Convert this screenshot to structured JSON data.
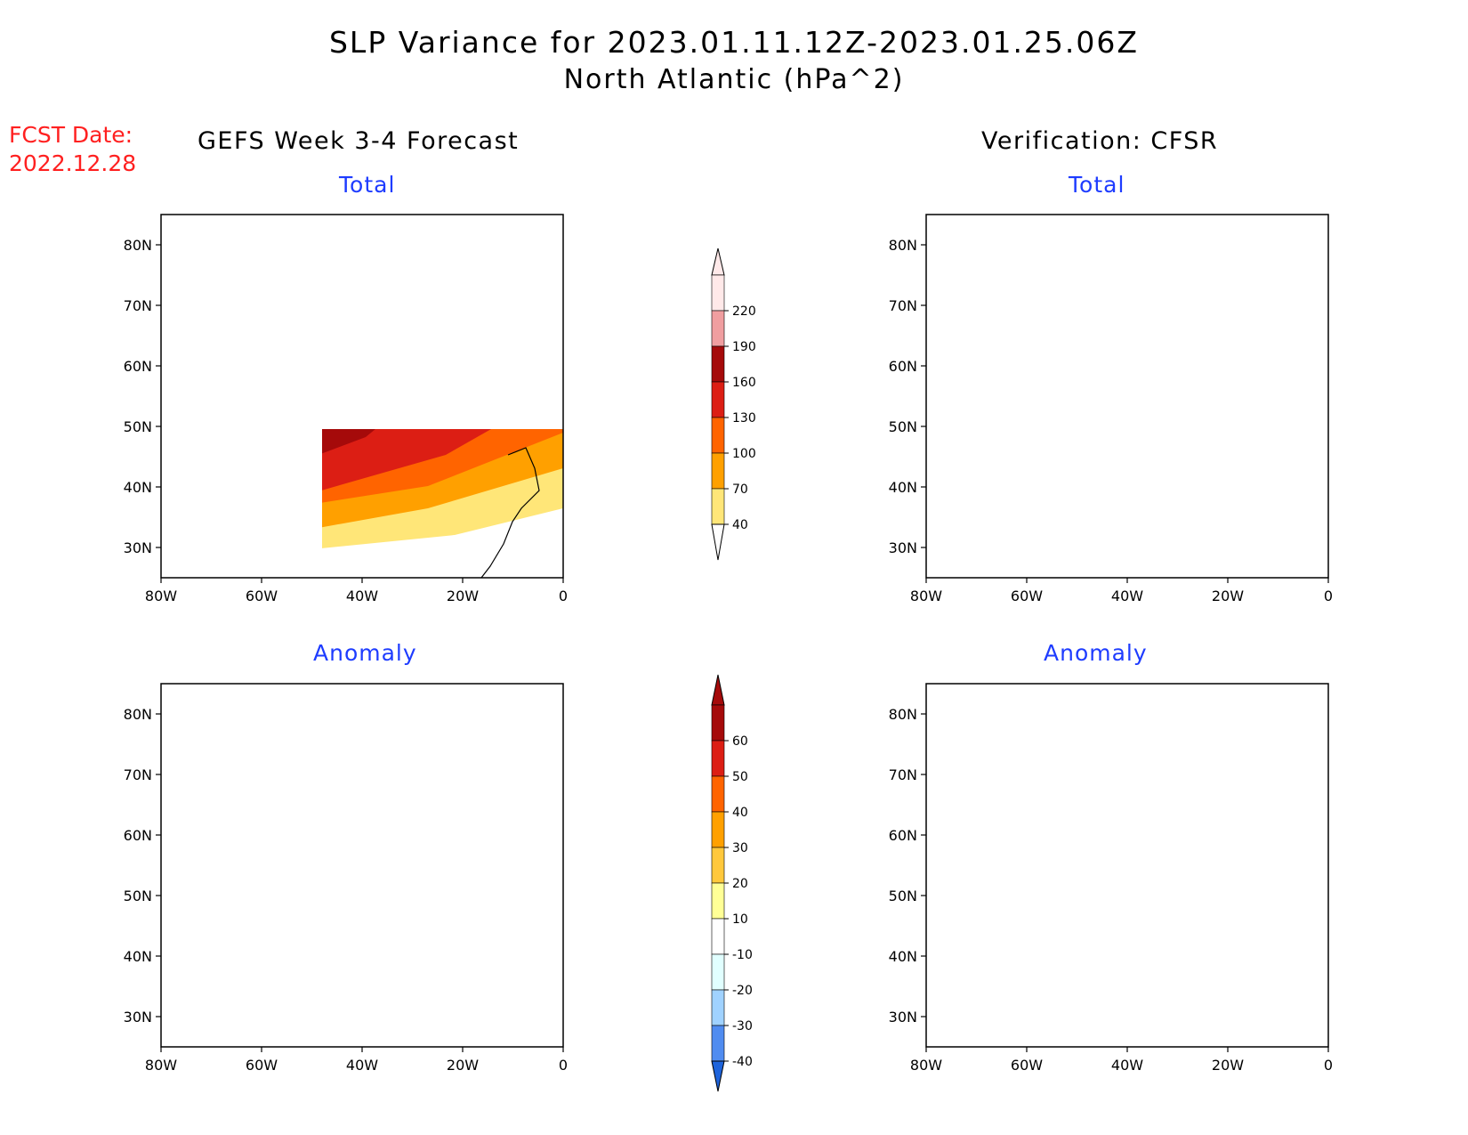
{
  "title": {
    "line1": "SLP Variance for 2023.01.11.12Z-2023.01.25.06Z",
    "line2": "North Atlantic (hPa^2)"
  },
  "fcst_date": {
    "label": "FCST Date:",
    "value": "2022.12.28"
  },
  "columns": {
    "left": "GEFS Week 3-4 Forecast",
    "right": "Verification: CFSR"
  },
  "panels": [
    {
      "name": "forecast-total",
      "subtitle": "Total",
      "kind": "total"
    },
    {
      "name": "verification-total",
      "subtitle": "Total",
      "kind": "total"
    },
    {
      "name": "forecast-anomaly",
      "subtitle": "Anomaly",
      "kind": "anomaly"
    },
    {
      "name": "verification-anomaly",
      "subtitle": "Anomaly",
      "kind": "anomaly"
    }
  ],
  "axes": {
    "lon_ticks": [
      "80W",
      "60W",
      "40W",
      "20W",
      "0"
    ],
    "lat_ticks": [
      "80N",
      "70N",
      "60N",
      "50N",
      "40N",
      "30N"
    ],
    "lon_range": [
      -80,
      0
    ],
    "lat_range": [
      25,
      85
    ]
  },
  "colorbars": {
    "total": {
      "labels": [
        "220",
        "190",
        "160",
        "130",
        "100",
        "70",
        "40"
      ],
      "colors": [
        "#ffe9e9",
        "#f09ea0",
        "#a50a0a",
        "#dc1e14",
        "#ff6400",
        "#ffa000",
        "#ffe678"
      ]
    },
    "anomaly": {
      "labels": [
        "60",
        "50",
        "40",
        "30",
        "20",
        "10",
        "-10",
        "-20",
        "-30",
        "-40"
      ],
      "colors": [
        "#a50a0a",
        "#dc1e14",
        "#ff6400",
        "#ffa000",
        "#ffc83c",
        "#ffff96",
        "#ffffff",
        "#e1ffff",
        "#a0d2ff",
        "#508cf0",
        "#1e64dc"
      ]
    }
  }
}
